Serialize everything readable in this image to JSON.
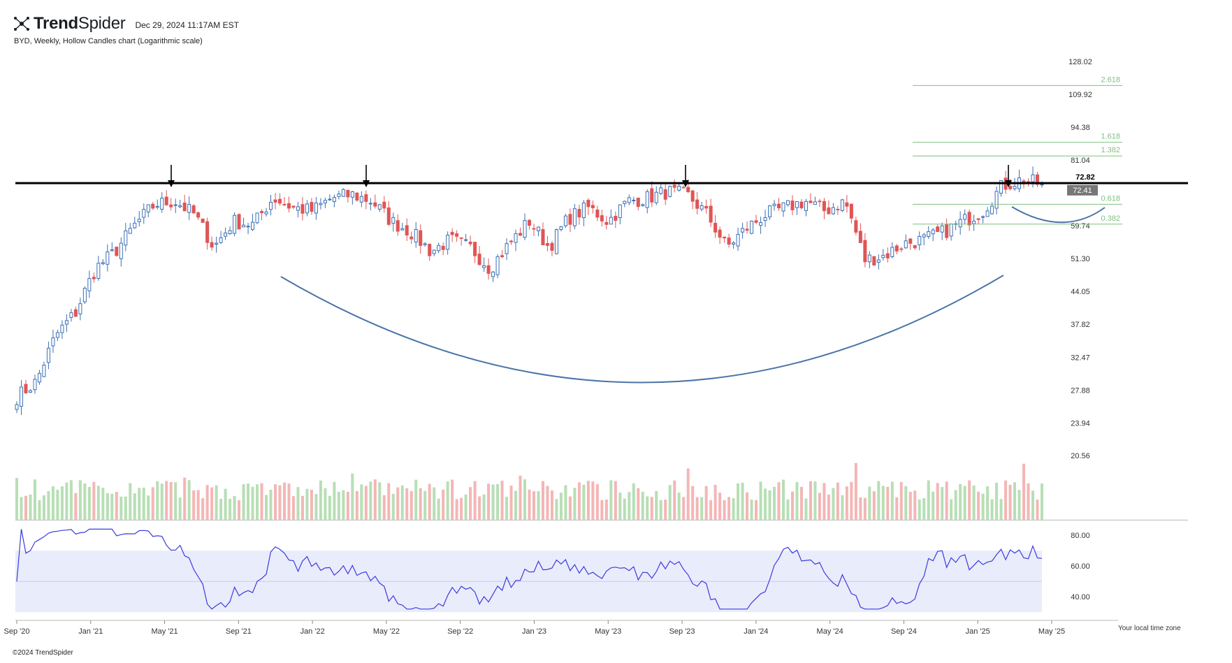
{
  "header": {
    "brand_bold": "Trend",
    "brand_light": "Spider",
    "datetime": "Dec 29, 2024 11:17AM EST",
    "subtitle": "BYD, Weekly, Hollow Candles chart (Logarithmic scale)"
  },
  "footer": {
    "copyright": "©2024 TrendSpider",
    "timezone": "Your local time zone"
  },
  "colors": {
    "up": "#3a6fb5",
    "down": "#e05555",
    "vol_up": "#b7dfb5",
    "vol_down": "#f4b6b6",
    "rsi_line": "#3b3bdd",
    "rsi_band": "#e9ecfb",
    "fib": "#7fc07f",
    "arc": "#4a74a8",
    "resistance": "#000000"
  },
  "chart_data": {
    "type": "candlestick",
    "title": "BYD, Weekly, Hollow Candles chart (Logarithmic scale)",
    "y_scale": "log",
    "price_axis_ticks": [
      "128.02",
      "109.92",
      "94.38",
      "81.04",
      "72.82",
      "59.74",
      "51.30",
      "44.05",
      "37.82",
      "32.47",
      "27.88",
      "23.94",
      "20.56"
    ],
    "x_axis_ticks": [
      "Sep '20",
      "Jan '21",
      "May '21",
      "Sep '21",
      "Jan '22",
      "May '22",
      "Sep '22",
      "Jan '23",
      "May '23",
      "Sep '23",
      "Jan '24",
      "May '24",
      "Sep '24",
      "Jan '25",
      "May '25"
    ],
    "resistance": {
      "value": 72.82,
      "label": "72.82"
    },
    "last_price": {
      "value": 72.41,
      "label": "72.41"
    },
    "fib_levels": [
      {
        "label": "2.618",
        "value": 114.5
      },
      {
        "label": "1.618",
        "value": 88.0
      },
      {
        "label": "1.382",
        "value": 82.6
      },
      {
        "label": "0.618",
        "value": 66.0
      },
      {
        "label": "0.382",
        "value": 60.2
      }
    ],
    "rsi": {
      "ticks": [
        "80.00",
        "60.00",
        "40.00"
      ],
      "band": [
        70,
        30
      ],
      "midline": 50
    },
    "price_anchors": [
      [
        "Sep '20",
        27
      ],
      [
        "Oct '20",
        29
      ],
      [
        "Nov '20",
        36
      ],
      [
        "Dec '20",
        40
      ],
      [
        "Jan '21",
        49
      ],
      [
        "Feb '21",
        53
      ],
      [
        "Mar '21",
        60
      ],
      [
        "Apr '21",
        66
      ],
      [
        "May '21",
        67
      ],
      [
        "Jun '21",
        63
      ],
      [
        "Jul '21",
        54
      ],
      [
        "Aug '21",
        61
      ],
      [
        "Sep '21",
        60
      ],
      [
        "Oct '21",
        68
      ],
      [
        "Nov '21",
        65
      ],
      [
        "Dec '21",
        64
      ],
      [
        "Jan '22",
        68
      ],
      [
        "Feb '22",
        69
      ],
      [
        "Mar '22",
        67
      ],
      [
        "Apr '22",
        61
      ],
      [
        "May '22",
        58
      ],
      [
        "Jun '22",
        53
      ],
      [
        "Jul '22",
        56
      ],
      [
        "Aug '22",
        54
      ],
      [
        "Sep '22",
        49
      ],
      [
        "Oct '22",
        55
      ],
      [
        "Nov '22",
        61
      ],
      [
        "Dec '22",
        54
      ],
      [
        "Jan '23",
        62
      ],
      [
        "Feb '23",
        65
      ],
      [
        "Mar '23",
        61
      ],
      [
        "Apr '23",
        67
      ],
      [
        "May '23",
        68
      ],
      [
        "Jun '23",
        70
      ],
      [
        "Jul '23",
        69
      ],
      [
        "Aug '23",
        63
      ],
      [
        "Sep '23",
        54
      ],
      [
        "Oct '23",
        59
      ],
      [
        "Nov '23",
        63
      ],
      [
        "Dec '23",
        65
      ],
      [
        "Jan '24",
        67
      ],
      [
        "Feb '24",
        64
      ],
      [
        "Mar '24",
        67
      ],
      [
        "Apr '24",
        51
      ],
      [
        "May '24",
        52
      ],
      [
        "Jun '24",
        55
      ],
      [
        "Jul '24",
        56
      ],
      [
        "Aug '24",
        58
      ],
      [
        "Sep '24",
        61
      ],
      [
        "Oct '24",
        64
      ],
      [
        "Nov '24",
        72
      ],
      [
        "Dec '24",
        74
      ],
      [
        "Dec 27 '24",
        72.41
      ]
    ]
  }
}
